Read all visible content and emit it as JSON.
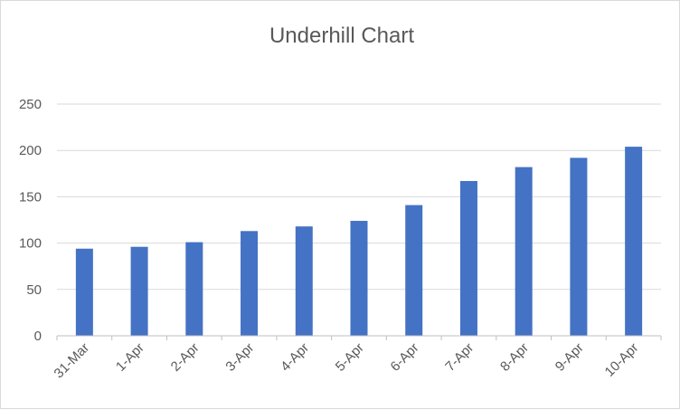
{
  "chart_data": {
    "type": "bar",
    "title": "Underhill Chart",
    "xlabel": "",
    "ylabel": "",
    "categories": [
      "31-Mar",
      "1-Apr",
      "2-Apr",
      "3-Apr",
      "4-Apr",
      "5-Apr",
      "6-Apr",
      "7-Apr",
      "8-Apr",
      "9-Apr",
      "10-Apr"
    ],
    "values": [
      94,
      96,
      101,
      113,
      118,
      124,
      141,
      167,
      182,
      192,
      204
    ],
    "ylim": [
      0,
      250
    ],
    "yticks": [
      0,
      50,
      100,
      150,
      200,
      250
    ],
    "grid": true,
    "legend": "none",
    "bar_color": "#4472c4"
  }
}
